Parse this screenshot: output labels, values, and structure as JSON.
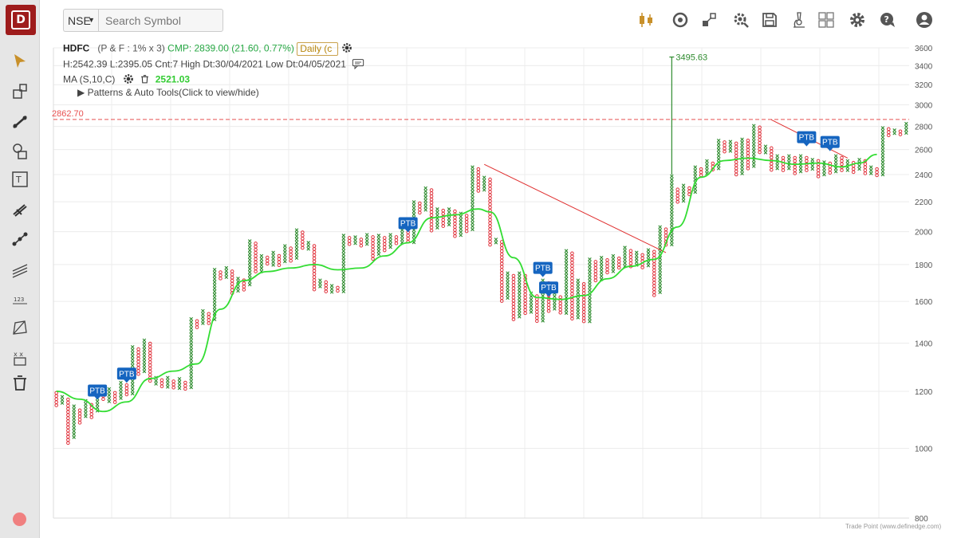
{
  "toolbar_left": {
    "tools": [
      "cursor-icon",
      "rectangle-tool-icon",
      "trend-line-icon",
      "shapes-icon",
      "text-tool-icon",
      "fork-icon",
      "line-points-icon",
      "parallel-lines-icon",
      "number-label-icon",
      "polygon-icon",
      "pattern-icon",
      "trash-icon"
    ]
  },
  "top_bar": {
    "exchange": "NSE",
    "search_placeholder": "Search Symbol",
    "icons": [
      "candlestick-icon",
      "indicator-icon",
      "compare-icon",
      "settings-gear-search-icon",
      "save-icon",
      "scanner-icon",
      "layout-icon",
      "settings-icon",
      "help-icon",
      "user-icon"
    ]
  },
  "header": {
    "symbol": "HDFC",
    "params": "(P & F : 1% x 3)",
    "cmp": "CMP: 2839.00 (21.60, 0.77%)",
    "interval": "Daily (c",
    "stats": "H:2542.39 L:2395.05 Cnt:7 High Dt:30/04/2021 Low Dt:04/05/2021",
    "ma_label": "MA (S,10,C)",
    "ma_value": "2521.03",
    "patterns_toggle": "▶  Patterns & Auto Tools(Click to view/hide)"
  },
  "footer": "Trade Point (www.definedge.com)",
  "colors": {
    "x_column": "#2e8b2e",
    "o_column": "#e0313b",
    "ma_line": "#33dd33",
    "trend_line": "#e03030",
    "level_line": "#e85050",
    "ptb_badge": "#1565c0",
    "grid": "#ececec"
  },
  "chart_data": {
    "type": "point-and-figure",
    "y_scale": "log",
    "ylim": [
      800,
      3600
    ],
    "yticks": [
      800,
      1000,
      1200,
      1400,
      1600,
      1800,
      2000,
      2200,
      2400,
      2600,
      2800,
      3000,
      3200,
      3400,
      3600
    ],
    "horizontal_level": {
      "value": 2862.7,
      "label": "2862.70"
    },
    "target_annotation": {
      "value": 3495.63,
      "label": "3495.63"
    },
    "columns": [
      {
        "type": "O",
        "high": 1200,
        "low": 1140
      },
      {
        "type": "X",
        "high": 1185,
        "low": 1145
      },
      {
        "type": "O",
        "high": 1175,
        "low": 1010
      },
      {
        "type": "X",
        "high": 1150,
        "low": 1030
      },
      {
        "type": "O",
        "high": 1135,
        "low": 1075
      },
      {
        "type": "X",
        "high": 1170,
        "low": 1100
      },
      {
        "type": "O",
        "high": 1155,
        "low": 1100
      },
      {
        "type": "X",
        "high": 1215,
        "low": 1120
      },
      {
        "type": "O",
        "high": 1200,
        "low": 1160
      },
      {
        "type": "X",
        "high": 1215,
        "low": 1160
      },
      {
        "type": "O",
        "high": 1200,
        "low": 1150
      },
      {
        "type": "X",
        "high": 1240,
        "low": 1165
      },
      {
        "type": "O",
        "high": 1230,
        "low": 1180
      },
      {
        "type": "X",
        "high": 1390,
        "low": 1190
      },
      {
        "type": "O",
        "high": 1380,
        "low": 1260
      },
      {
        "type": "X",
        "high": 1420,
        "low": 1275
      },
      {
        "type": "O",
        "high": 1405,
        "low": 1235
      },
      {
        "type": "X",
        "high": 1260,
        "low": 1220
      },
      {
        "type": "O",
        "high": 1250,
        "low": 1210
      },
      {
        "type": "X",
        "high": 1260,
        "low": 1205
      },
      {
        "type": "O",
        "high": 1245,
        "low": 1210
      },
      {
        "type": "X",
        "high": 1255,
        "low": 1205
      },
      {
        "type": "O",
        "high": 1240,
        "low": 1200
      },
      {
        "type": "X",
        "high": 1520,
        "low": 1210
      },
      {
        "type": "O",
        "high": 1510,
        "low": 1470
      },
      {
        "type": "X",
        "high": 1560,
        "low": 1480
      },
      {
        "type": "O",
        "high": 1545,
        "low": 1490
      },
      {
        "type": "X",
        "high": 1780,
        "low": 1510
      },
      {
        "type": "O",
        "high": 1765,
        "low": 1715
      },
      {
        "type": "X",
        "high": 1790,
        "low": 1720
      },
      {
        "type": "O",
        "high": 1770,
        "low": 1640
      },
      {
        "type": "X",
        "high": 1730,
        "low": 1650
      },
      {
        "type": "O",
        "high": 1720,
        "low": 1660
      },
      {
        "type": "X",
        "high": 1950,
        "low": 1680
      },
      {
        "type": "O",
        "high": 1935,
        "low": 1750
      },
      {
        "type": "X",
        "high": 1860,
        "low": 1760
      },
      {
        "type": "O",
        "high": 1850,
        "low": 1790
      },
      {
        "type": "X",
        "high": 1880,
        "low": 1795
      },
      {
        "type": "O",
        "high": 1860,
        "low": 1790
      },
      {
        "type": "X",
        "high": 1920,
        "low": 1800
      },
      {
        "type": "O",
        "high": 1905,
        "low": 1820
      },
      {
        "type": "X",
        "high": 2020,
        "low": 1835
      },
      {
        "type": "O",
        "high": 2005,
        "low": 1880
      },
      {
        "type": "X",
        "high": 1940,
        "low": 1885
      },
      {
        "type": "O",
        "high": 1920,
        "low": 1660
      },
      {
        "type": "X",
        "high": 1720,
        "low": 1665
      },
      {
        "type": "O",
        "high": 1710,
        "low": 1640
      },
      {
        "type": "X",
        "high": 1690,
        "low": 1645
      },
      {
        "type": "O",
        "high": 1680,
        "low": 1640
      },
      {
        "type": "X",
        "high": 1985,
        "low": 1650
      },
      {
        "type": "O",
        "high": 1970,
        "low": 1920
      },
      {
        "type": "X",
        "high": 1975,
        "low": 1925
      },
      {
        "type": "O",
        "high": 1960,
        "low": 1910
      },
      {
        "type": "X",
        "high": 1990,
        "low": 1920
      },
      {
        "type": "O",
        "high": 1975,
        "low": 1830
      },
      {
        "type": "X",
        "high": 1985,
        "low": 1845
      },
      {
        "type": "O",
        "high": 1970,
        "low": 1880
      },
      {
        "type": "X",
        "high": 1990,
        "low": 1890
      },
      {
        "type": "O",
        "high": 1975,
        "low": 1910
      },
      {
        "type": "X",
        "high": 2040,
        "low": 1915
      },
      {
        "type": "O",
        "high": 2025,
        "low": 1920
      },
      {
        "type": "X",
        "high": 2210,
        "low": 1930
      },
      {
        "type": "O",
        "high": 2200,
        "low": 2120
      },
      {
        "type": "X",
        "high": 2310,
        "low": 2130
      },
      {
        "type": "O",
        "high": 2295,
        "low": 2000
      },
      {
        "type": "X",
        "high": 2160,
        "low": 2010
      },
      {
        "type": "O",
        "high": 2150,
        "low": 2030
      },
      {
        "type": "X",
        "high": 2160,
        "low": 2040
      },
      {
        "type": "O",
        "high": 2145,
        "low": 1960
      },
      {
        "type": "X",
        "high": 2130,
        "low": 1970
      },
      {
        "type": "O",
        "high": 2115,
        "low": 1990
      },
      {
        "type": "X",
        "high": 2470,
        "low": 2000
      },
      {
        "type": "O",
        "high": 2455,
        "low": 2260
      },
      {
        "type": "X",
        "high": 2390,
        "low": 2270
      },
      {
        "type": "O",
        "high": 2375,
        "low": 1910
      },
      {
        "type": "X",
        "high": 1960,
        "low": 1920
      },
      {
        "type": "O",
        "high": 1945,
        "low": 1600
      },
      {
        "type": "X",
        "high": 1760,
        "low": 1610
      },
      {
        "type": "O",
        "high": 1745,
        "low": 1500
      },
      {
        "type": "X",
        "high": 1760,
        "low": 1510
      },
      {
        "type": "O",
        "high": 1745,
        "low": 1530
      },
      {
        "type": "X",
        "high": 1650,
        "low": 1540
      },
      {
        "type": "O",
        "high": 1635,
        "low": 1490
      },
      {
        "type": "X",
        "high": 1720,
        "low": 1500
      },
      {
        "type": "O",
        "high": 1705,
        "low": 1545
      },
      {
        "type": "X",
        "high": 1650,
        "low": 1550
      },
      {
        "type": "O",
        "high": 1630,
        "low": 1530
      },
      {
        "type": "X",
        "high": 1890,
        "low": 1540
      },
      {
        "type": "O",
        "high": 1875,
        "low": 1500
      },
      {
        "type": "X",
        "high": 1720,
        "low": 1505
      },
      {
        "type": "O",
        "high": 1700,
        "low": 1495
      },
      {
        "type": "X",
        "high": 1840,
        "low": 1500
      },
      {
        "type": "O",
        "high": 1825,
        "low": 1700
      },
      {
        "type": "X",
        "high": 1850,
        "low": 1715
      },
      {
        "type": "O",
        "high": 1835,
        "low": 1745
      },
      {
        "type": "X",
        "high": 1860,
        "low": 1755
      },
      {
        "type": "O",
        "high": 1845,
        "low": 1770
      },
      {
        "type": "X",
        "high": 1910,
        "low": 1775
      },
      {
        "type": "O",
        "high": 1890,
        "low": 1780
      },
      {
        "type": "X",
        "high": 1880,
        "low": 1790
      },
      {
        "type": "O",
        "high": 1865,
        "low": 1780
      },
      {
        "type": "X",
        "high": 1895,
        "low": 1790
      },
      {
        "type": "O",
        "high": 1885,
        "low": 1625
      },
      {
        "type": "X",
        "high": 2040,
        "low": 1640
      },
      {
        "type": "O",
        "high": 2025,
        "low": 1900
      },
      {
        "type": "X",
        "high": 3495.63,
        "low": 1910
      },
      {
        "type": "O",
        "high": 2300,
        "low": 2180
      },
      {
        "type": "X",
        "high": 2330,
        "low": 2200
      },
      {
        "type": "O",
        "high": 2310,
        "low": 2240
      },
      {
        "type": "X",
        "high": 2470,
        "low": 2260
      },
      {
        "type": "O",
        "high": 2455,
        "low": 2390
      },
      {
        "type": "X",
        "high": 2520,
        "low": 2400
      },
      {
        "type": "O",
        "high": 2500,
        "low": 2420
      },
      {
        "type": "X",
        "high": 2690,
        "low": 2430
      },
      {
        "type": "O",
        "high": 2675,
        "low": 2560
      },
      {
        "type": "X",
        "high": 2680,
        "low": 2575
      },
      {
        "type": "O",
        "high": 2665,
        "low": 2380
      },
      {
        "type": "X",
        "high": 2700,
        "low": 2390
      },
      {
        "type": "O",
        "high": 2690,
        "low": 2440
      },
      {
        "type": "X",
        "high": 2820,
        "low": 2450
      },
      {
        "type": "O",
        "high": 2805,
        "low": 2560
      },
      {
        "type": "X",
        "high": 2640,
        "low": 2570
      },
      {
        "type": "O",
        "high": 2625,
        "low": 2420
      },
      {
        "type": "X",
        "high": 2560,
        "low": 2430
      },
      {
        "type": "O",
        "high": 2545,
        "low": 2420
      },
      {
        "type": "X",
        "high": 2560,
        "low": 2430
      },
      {
        "type": "O",
        "high": 2545,
        "low": 2400
      },
      {
        "type": "X",
        "high": 2560,
        "low": 2410
      },
      {
        "type": "O",
        "high": 2545,
        "low": 2420
      },
      {
        "type": "X",
        "high": 2530,
        "low": 2430
      },
      {
        "type": "O",
        "high": 2520,
        "low": 2380
      },
      {
        "type": "X",
        "high": 2510,
        "low": 2390
      },
      {
        "type": "O",
        "high": 2500,
        "low": 2400
      },
      {
        "type": "X",
        "high": 2560,
        "low": 2410
      },
      {
        "type": "O",
        "high": 2545,
        "low": 2420
      },
      {
        "type": "X",
        "high": 2520,
        "low": 2430
      },
      {
        "type": "O",
        "high": 2505,
        "low": 2410
      },
      {
        "type": "X",
        "high": 2530,
        "low": 2420
      },
      {
        "type": "O",
        "high": 2520,
        "low": 2390
      },
      {
        "type": "X",
        "high": 2470,
        "low": 2400
      },
      {
        "type": "O",
        "high": 2455,
        "low": 2380
      },
      {
        "type": "X",
        "high": 2800,
        "low": 2390
      },
      {
        "type": "O",
        "high": 2790,
        "low": 2720
      },
      {
        "type": "X",
        "high": 2780,
        "low": 2730
      },
      {
        "type": "O",
        "high": 2770,
        "low": 2720
      },
      {
        "type": "X",
        "high": 2839,
        "low": 2730
      }
    ],
    "moving_average": {
      "name": "MA (S,10,C)",
      "points": [
        [
          0,
          1200
        ],
        [
          4,
          1170
        ],
        [
          8,
          1125
        ],
        [
          12,
          1160
        ],
        [
          16,
          1250
        ],
        [
          20,
          1280
        ],
        [
          24,
          1310
        ],
        [
          28,
          1560
        ],
        [
          32,
          1710
        ],
        [
          36,
          1760
        ],
        [
          40,
          1780
        ],
        [
          44,
          1800
        ],
        [
          48,
          1770
        ],
        [
          52,
          1780
        ],
        [
          56,
          1850
        ],
        [
          60,
          1930
        ],
        [
          64,
          2090
        ],
        [
          68,
          2110
        ],
        [
          72,
          2150
        ],
        [
          74,
          2130
        ],
        [
          78,
          1840
        ],
        [
          82,
          1620
        ],
        [
          86,
          1610
        ],
        [
          90,
          1630
        ],
        [
          94,
          1720
        ],
        [
          98,
          1790
        ],
        [
          102,
          1830
        ],
        [
          106,
          2030
        ],
        [
          110,
          2380
        ],
        [
          114,
          2510
        ],
        [
          118,
          2530
        ],
        [
          122,
          2510
        ],
        [
          126,
          2480
        ],
        [
          130,
          2490
        ],
        [
          134,
          2460
        ],
        [
          137,
          2490
        ],
        [
          140,
          2560
        ]
      ]
    },
    "trend_lines": [
      {
        "from": [
          73,
          2480
        ],
        "to": [
          104,
          1870
        ]
      },
      {
        "from": [
          122,
          2860
        ],
        "to": [
          135,
          2530
        ]
      }
    ],
    "markers": [
      {
        "label": "PTB",
        "col": 7,
        "value": 1165
      },
      {
        "label": "PTB",
        "col": 12,
        "value": 1230
      },
      {
        "label": "PTB",
        "col": 60,
        "value": 1990
      },
      {
        "label": "PTB",
        "col": 83,
        "value": 1725
      },
      {
        "label": "PTB",
        "col": 84,
        "value": 1620
      },
      {
        "label": "PTB",
        "col": 128,
        "value": 2620
      },
      {
        "label": "PTB",
        "col": 132,
        "value": 2580
      }
    ]
  }
}
